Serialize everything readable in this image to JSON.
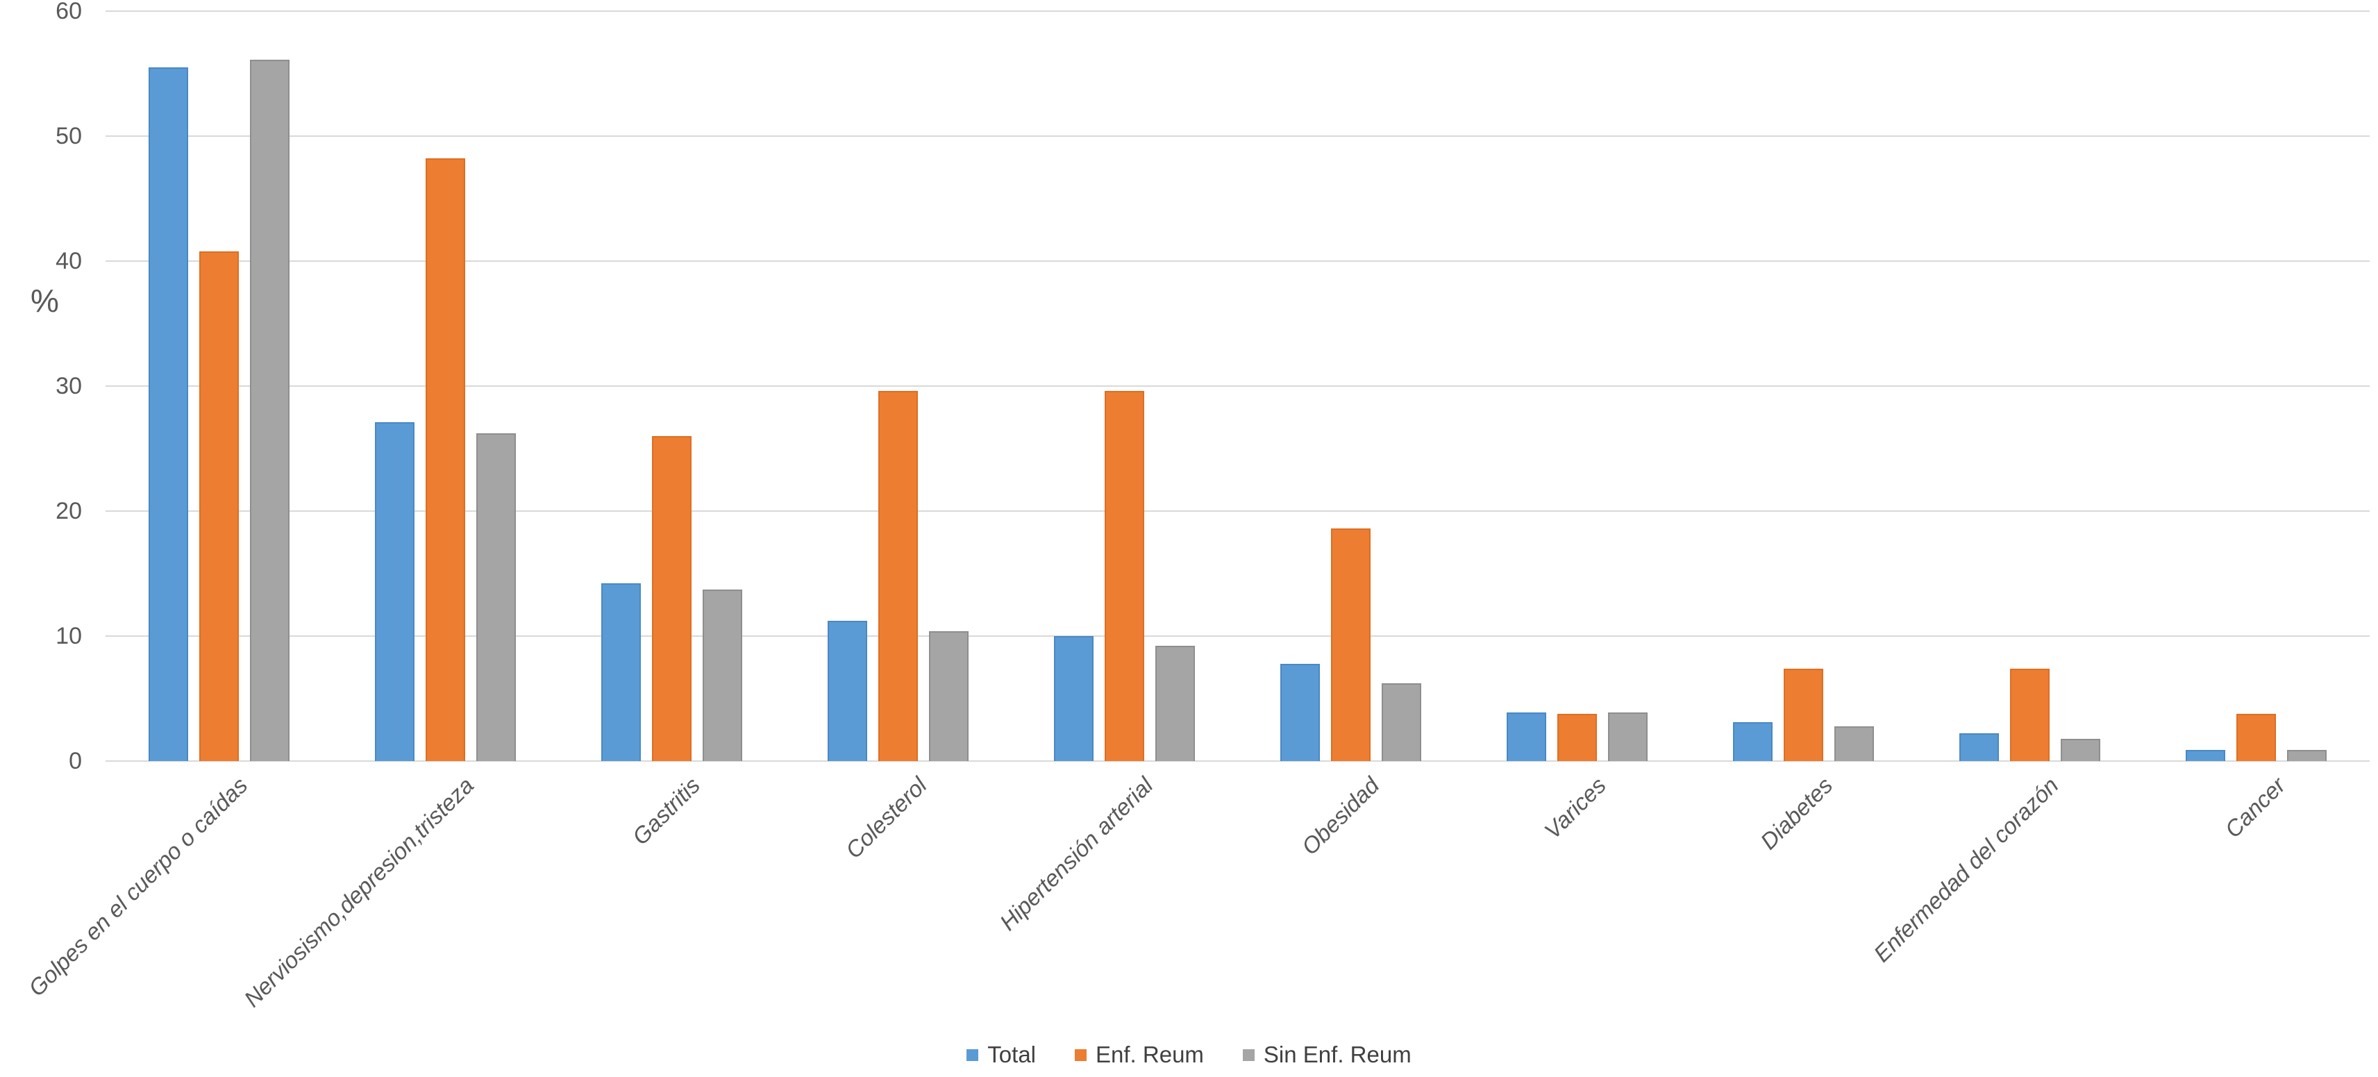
{
  "chart_data": {
    "type": "bar",
    "title": "",
    "xlabel": "",
    "ylabel": "%",
    "ylim": [
      0,
      60
    ],
    "yticks": [
      0,
      10,
      20,
      30,
      40,
      50,
      60
    ],
    "grid": true,
    "legend_position": "bottom-center",
    "categories": [
      "Golpes en el cuerpo o caídas",
      "Nerviosismo,depresion,tristeza",
      "Gastritis",
      "Colesterol",
      "Hipertensión arterial",
      "Obesidad",
      "Varices",
      "Diabetes",
      "Enfermedad del corazón",
      "Cancer"
    ],
    "series": [
      {
        "name": "Total",
        "color": "#5b9bd5",
        "border_color": "#4a89c4",
        "values": [
          55.5,
          27.1,
          14.2,
          11.2,
          10.0,
          7.8,
          3.9,
          3.1,
          2.2,
          0.9
        ]
      },
      {
        "name": "Enf. Reum",
        "color": "#ed7d31",
        "border_color": "#dd6f24",
        "values": [
          40.8,
          48.2,
          26.0,
          29.6,
          29.6,
          18.6,
          3.8,
          7.4,
          7.4,
          3.8
        ]
      },
      {
        "name": "Sin Enf. Reum",
        "color": "#a5a5a5",
        "border_color": "#8e8e8e",
        "values": [
          56.1,
          26.2,
          13.7,
          10.4,
          9.2,
          6.2,
          3.9,
          2.8,
          1.8,
          0.9
        ]
      }
    ],
    "colors": {
      "background": "#ffffff",
      "gridline": "#d9d9d9",
      "axis_text": "#595959",
      "legend_text": "#404040"
    }
  }
}
